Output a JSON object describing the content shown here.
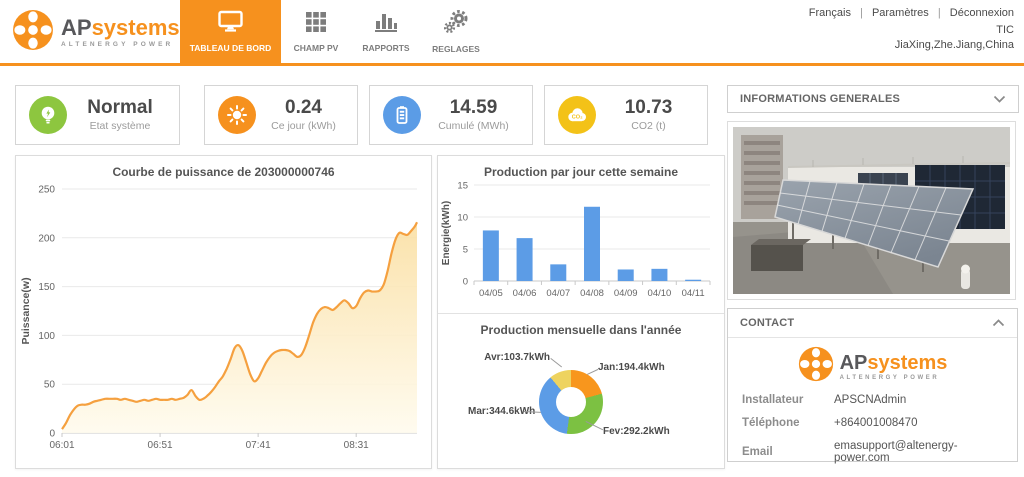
{
  "header": {
    "logo": {
      "brand_ap": "AP",
      "brand_systems": "systems",
      "tagline": "ALTENERGY POWER"
    },
    "nav": [
      {
        "label": "TABLEAU DE BORD",
        "icon": "monitor-icon",
        "active": true
      },
      {
        "label": "CHAMP PV",
        "icon": "grid-icon",
        "active": false
      },
      {
        "label": "RAPPORTS",
        "icon": "bar-chart-icon",
        "active": false
      },
      {
        "label": "REGLAGES",
        "icon": "gears-icon",
        "active": false
      }
    ],
    "links": [
      "Français",
      "Paramètres",
      "Déconnexion"
    ],
    "separator": "|",
    "site_name": "TIC",
    "site_location": "JiaXing,Zhe.Jiang,China",
    "accent_color": "#f6911e"
  },
  "status_cards": [
    {
      "value": "Normal",
      "label": "Etat système",
      "icon": "bulb-icon",
      "color": "#8dc63f"
    },
    {
      "value": "0.24",
      "label": "Ce jour (kWh)",
      "icon": "sun-icon",
      "color": "#f6911e"
    },
    {
      "value": "14.59",
      "label": "Cumulé (MWh)",
      "icon": "battery-icon",
      "color": "#5b9ce6"
    },
    {
      "value": "10.73",
      "label": "CO2 (t)",
      "icon": "co2-cloud-icon",
      "color": "#f3c218"
    }
  ],
  "chart_data": [
    {
      "type": "area",
      "title": "Courbe de puissance de 203000000746",
      "ylabel": "Puissance(w)",
      "ylim": [
        0,
        250
      ],
      "y_ticks": [
        0,
        50,
        100,
        150,
        200,
        250
      ],
      "x_ticks": [
        "06:01",
        "06:51",
        "07:41",
        "08:31"
      ],
      "x_tick_minutes": [
        0,
        50,
        100,
        150
      ],
      "line_color": "#f5a03f",
      "fill_from": "#fadfa2",
      "fill_to": "#fffbee",
      "grid": true,
      "points": [
        [
          0,
          4
        ],
        [
          2,
          10
        ],
        [
          4,
          18
        ],
        [
          6,
          24
        ],
        [
          8,
          28
        ],
        [
          10,
          29
        ],
        [
          12,
          29
        ],
        [
          14,
          30
        ],
        [
          16,
          32
        ],
        [
          18,
          33
        ],
        [
          20,
          34
        ],
        [
          22,
          35
        ],
        [
          24,
          35
        ],
        [
          26,
          35
        ],
        [
          28,
          35
        ],
        [
          30,
          34
        ],
        [
          32,
          35
        ],
        [
          34,
          34
        ],
        [
          36,
          33
        ],
        [
          38,
          32
        ],
        [
          40,
          33
        ],
        [
          42,
          34
        ],
        [
          44,
          33
        ],
        [
          46,
          34
        ],
        [
          48,
          35
        ],
        [
          50,
          34
        ],
        [
          52,
          34
        ],
        [
          54,
          34
        ],
        [
          56,
          35
        ],
        [
          58,
          34
        ],
        [
          60,
          35
        ],
        [
          62,
          36
        ],
        [
          64,
          39
        ],
        [
          66,
          44
        ],
        [
          68,
          38
        ],
        [
          70,
          34
        ],
        [
          72,
          35
        ],
        [
          74,
          38
        ],
        [
          76,
          42
        ],
        [
          78,
          47
        ],
        [
          80,
          53
        ],
        [
          82,
          58
        ],
        [
          84,
          66
        ],
        [
          86,
          76
        ],
        [
          88,
          87
        ],
        [
          90,
          90
        ],
        [
          92,
          84
        ],
        [
          94,
          72
        ],
        [
          96,
          60
        ],
        [
          98,
          53
        ],
        [
          100,
          56
        ],
        [
          102,
          64
        ],
        [
          104,
          72
        ],
        [
          106,
          78
        ],
        [
          108,
          82
        ],
        [
          110,
          84
        ],
        [
          112,
          85
        ],
        [
          114,
          85
        ],
        [
          116,
          84
        ],
        [
          118,
          81
        ],
        [
          120,
          78
        ],
        [
          122,
          80
        ],
        [
          124,
          88
        ],
        [
          126,
          100
        ],
        [
          128,
          113
        ],
        [
          130,
          122
        ],
        [
          132,
          127
        ],
        [
          134,
          129
        ],
        [
          136,
          128
        ],
        [
          138,
          126
        ],
        [
          140,
          129
        ],
        [
          142,
          133
        ],
        [
          144,
          136
        ],
        [
          146,
          133
        ],
        [
          148,
          128
        ],
        [
          150,
          130
        ],
        [
          152,
          138
        ],
        [
          154,
          144
        ],
        [
          156,
          146
        ],
        [
          158,
          145
        ],
        [
          160,
          145
        ],
        [
          162,
          146
        ],
        [
          164,
          152
        ],
        [
          166,
          166
        ],
        [
          168,
          184
        ],
        [
          170,
          198
        ],
        [
          172,
          205
        ],
        [
          174,
          204
        ],
        [
          176,
          203
        ],
        [
          178,
          207
        ],
        [
          180,
          212
        ],
        [
          181,
          216
        ]
      ]
    },
    {
      "type": "bar",
      "title": "Production par jour cette semaine",
      "ylabel": "Energie(kWh)",
      "ylim": [
        0,
        15
      ],
      "y_ticks": [
        0,
        5,
        10,
        15
      ],
      "categories": [
        "04/05",
        "04/06",
        "04/07",
        "04/08",
        "04/09",
        "04/10",
        "04/11"
      ],
      "values": [
        7.9,
        6.7,
        2.6,
        11.6,
        1.8,
        1.9,
        0.2
      ],
      "bar_color": "#5c9ce6",
      "grid": true
    },
    {
      "type": "pie",
      "donut": true,
      "title": "Production mensuelle dans l'année",
      "labels": [
        "Jan",
        "Fev",
        "Mar",
        "Avr"
      ],
      "values_kwh": [
        194.4,
        292.2,
        344.6,
        103.7
      ],
      "colors": [
        "#f8961d",
        "#7cc142",
        "#5c9ce6",
        "#eed35f"
      ],
      "labels_display": {
        "jan": "Jan:194.4kWh",
        "fev": "Fev:292.2kWh",
        "mar": "Mar:344.6kWh",
        "avr": "Avr:103.7kWh"
      }
    }
  ],
  "sidebar": {
    "info_header": "INFORMATIONS GENERALES",
    "contact": {
      "header": "CONTACT",
      "logo": {
        "brand_ap": "AP",
        "brand_systems": "systems",
        "tagline": "ALTENERGY POWER"
      },
      "rows": [
        {
          "label": "Installateur",
          "value": "APSCNAdmin"
        },
        {
          "label": "Téléphone",
          "value": "+864001008470"
        },
        {
          "label": "Email",
          "value": "emasupport@altenergy-power.com"
        }
      ]
    }
  }
}
